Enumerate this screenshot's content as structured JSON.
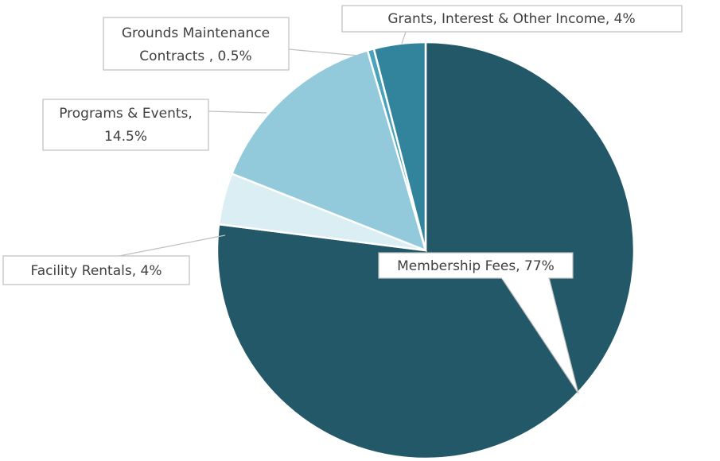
{
  "chart_data": {
    "type": "pie",
    "categories": [
      "Membership Fees",
      "Facility Rentals",
      "Programs & Events",
      "Grounds Maintenance Contracts ",
      "Grants, Interest & Other Income"
    ],
    "values": [
      77,
      4,
      14.5,
      0.5,
      4
    ],
    "labels": [
      [
        "Membership Fees, 77%"
      ],
      [
        "Facility Rentals, 4%"
      ],
      [
        "Programs & Events,",
        "14.5%"
      ],
      [
        "Grounds Maintenance",
        "Contracts , 0.5%"
      ],
      [
        "Grants, Interest & Other Income, 4%"
      ]
    ],
    "colors": [
      "#235868",
      "#daeef3",
      "#92cadb",
      "#4aa3ba",
      "#31849b"
    ]
  }
}
